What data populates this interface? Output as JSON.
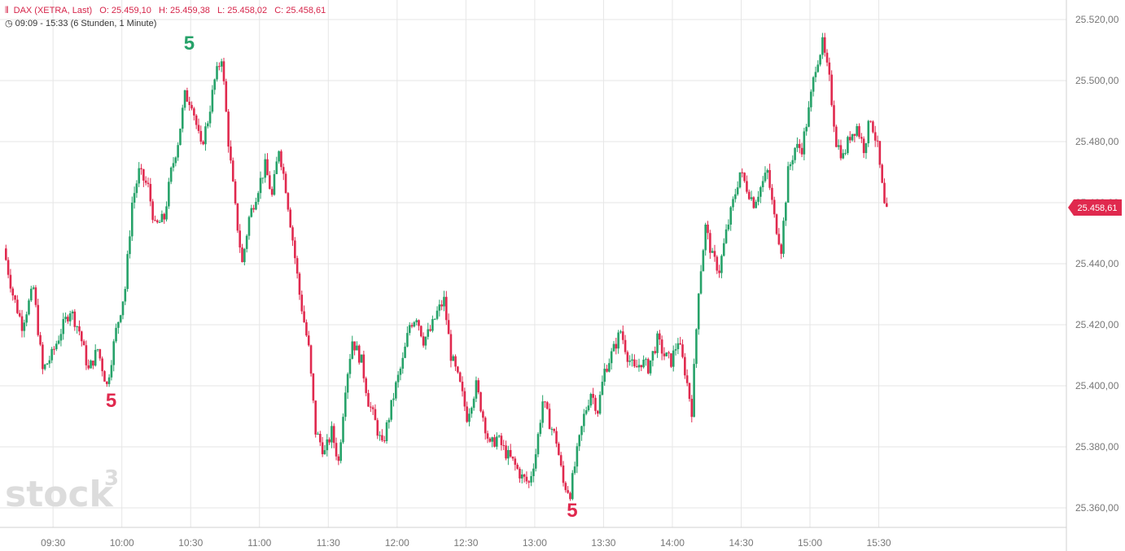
{
  "header": {
    "symbol": "DAX (XETRA, Last)",
    "open": "O: 25.459,10",
    "high": "H: 25.459,38",
    "low": "L: 25.458,02",
    "close": "C: 25.458,61",
    "range": "09:09 - 15:33",
    "period": "(6 Stunden, 1 Minute)"
  },
  "watermark": {
    "text": "stock",
    "sup": "3"
  },
  "last_price_label": "25.458,61",
  "colors": {
    "up": "#26a269",
    "down": "#e0294e",
    "grid": "#e6e6e6",
    "axis_text": "#777777"
  },
  "chart_data": {
    "type": "candlestick",
    "title": "DAX (XETRA, Last)",
    "xlabel": "",
    "ylabel": "",
    "x_ticks": [
      "09:30",
      "10:00",
      "10:30",
      "11:00",
      "11:30",
      "12:00",
      "12:30",
      "13:00",
      "13:30",
      "14:00",
      "14:30",
      "15:00",
      "15:30"
    ],
    "y_ticks": [
      "25.360,00",
      "25.380,00",
      "25.400,00",
      "25.420,00",
      "25.440,00",
      "25.460,00",
      "25.480,00",
      "25.500,00",
      "25.520,00"
    ],
    "ylim": [
      25355,
      25525
    ],
    "x_range_minutes": [
      549,
      933
    ],
    "grid": true,
    "last_close": 25458.61,
    "anchors": [
      [
        549,
        25445
      ],
      [
        553,
        25430
      ],
      [
        557,
        25420
      ],
      [
        562,
        25432
      ],
      [
        566,
        25405
      ],
      [
        570,
        25410
      ],
      [
        574,
        25418
      ],
      [
        578,
        25425
      ],
      [
        582,
        25418
      ],
      [
        586,
        25405
      ],
      [
        590,
        25412
      ],
      [
        594,
        25400
      ],
      [
        598,
        25418
      ],
      [
        602,
        25432
      ],
      [
        605,
        25460
      ],
      [
        608,
        25470
      ],
      [
        612,
        25465
      ],
      [
        615,
        25452
      ],
      [
        619,
        25455
      ],
      [
        622,
        25470
      ],
      [
        625,
        25480
      ],
      [
        628,
        25495
      ],
      [
        631,
        25493
      ],
      [
        635,
        25478
      ],
      [
        638,
        25487
      ],
      [
        641,
        25500
      ],
      [
        644,
        25508
      ],
      [
        647,
        25480
      ],
      [
        650,
        25458
      ],
      [
        653,
        25440
      ],
      [
        656,
        25455
      ],
      [
        660,
        25465
      ],
      [
        663,
        25472
      ],
      [
        666,
        25462
      ],
      [
        669,
        25478
      ],
      [
        672,
        25465
      ],
      [
        675,
        25448
      ],
      [
        678,
        25430
      ],
      [
        682,
        25412
      ],
      [
        685,
        25385
      ],
      [
        689,
        25378
      ],
      [
        692,
        25385
      ],
      [
        695,
        25375
      ],
      [
        698,
        25400
      ],
      [
        701,
        25415
      ],
      [
        705,
        25408
      ],
      [
        708,
        25395
      ],
      [
        711,
        25388
      ],
      [
        714,
        25380
      ],
      [
        717,
        25390
      ],
      [
        720,
        25400
      ],
      [
        723,
        25408
      ],
      [
        726,
        25420
      ],
      [
        729,
        25423
      ],
      [
        732,
        25415
      ],
      [
        735,
        25418
      ],
      [
        738,
        25424
      ],
      [
        741,
        25428
      ],
      [
        744,
        25410
      ],
      [
        748,
        25400
      ],
      [
        751,
        25390
      ],
      [
        755,
        25400
      ],
      [
        758,
        25390
      ],
      [
        761,
        25380
      ],
      [
        764,
        25383
      ],
      [
        768,
        25378
      ],
      [
        771,
        25375
      ],
      [
        775,
        25370
      ],
      [
        778,
        25368
      ],
      [
        781,
        25378
      ],
      [
        784,
        25395
      ],
      [
        787,
        25388
      ],
      [
        790,
        25382
      ],
      [
        793,
        25368
      ],
      [
        796,
        25365
      ],
      [
        799,
        25378
      ],
      [
        802,
        25390
      ],
      [
        805,
        25398
      ],
      [
        808,
        25392
      ],
      [
        811,
        25405
      ],
      [
        815,
        25412
      ],
      [
        818,
        25418
      ],
      [
        821,
        25410
      ],
      [
        824,
        25405
      ],
      [
        827,
        25408
      ],
      [
        830,
        25406
      ],
      [
        834,
        25415
      ],
      [
        837,
        25410
      ],
      [
        840,
        25408
      ],
      [
        843,
        25415
      ],
      [
        846,
        25405
      ],
      [
        849,
        25392
      ],
      [
        852,
        25432
      ],
      [
        855,
        25452
      ],
      [
        858,
        25442
      ],
      [
        861,
        25438
      ],
      [
        864,
        25450
      ],
      [
        867,
        25460
      ],
      [
        870,
        25470
      ],
      [
        873,
        25465
      ],
      [
        876,
        25460
      ],
      [
        879,
        25465
      ],
      [
        882,
        25470
      ],
      [
        885,
        25455
      ],
      [
        888,
        25445
      ],
      [
        891,
        25470
      ],
      [
        894,
        25478
      ],
      [
        897,
        25478
      ],
      [
        900,
        25490
      ],
      [
        903,
        25505
      ],
      [
        906,
        25512
      ],
      [
        909,
        25500
      ],
      [
        912,
        25480
      ],
      [
        915,
        25475
      ],
      [
        918,
        25482
      ],
      [
        921,
        25485
      ],
      [
        924,
        25478
      ],
      [
        927,
        25488
      ],
      [
        930,
        25478
      ],
      [
        933,
        25458.61
      ]
    ],
    "markers": [
      {
        "label": "5",
        "minute": 595,
        "price": 25400,
        "position": "below",
        "color": "#e0294e"
      },
      {
        "label": "5",
        "minute": 629,
        "price": 25508,
        "position": "above",
        "color": "#26a269"
      },
      {
        "label": "5",
        "minute": 796,
        "price": 25364,
        "position": "below",
        "color": "#e0294e"
      }
    ]
  }
}
